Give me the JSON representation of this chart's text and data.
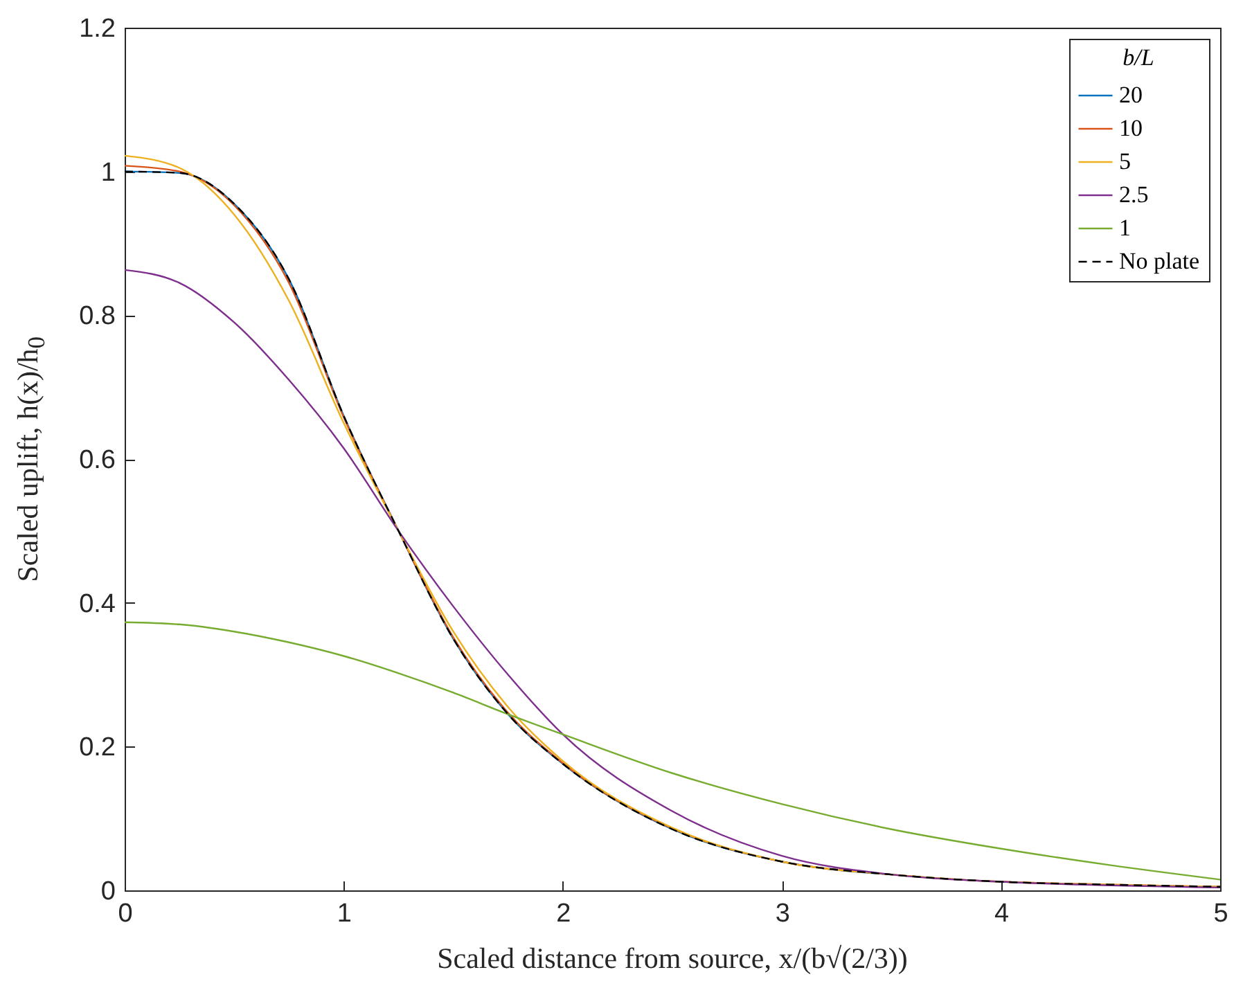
{
  "chart_data": {
    "type": "line",
    "xlabel": "Scaled distance from source, x/(b√(2/3))",
    "ylabel": "Scaled uplift, h(x)/h$_{0}$",
    "legend_title": "b/L",
    "legend": "top right",
    "grid": false,
    "x": [
      0,
      0.25,
      0.5,
      0.75,
      1,
      1.25,
      1.5,
      1.75,
      2,
      2.5,
      3,
      3.5,
      4,
      4.5,
      5
    ],
    "xlim": [
      0,
      5
    ],
    "xticks": [
      0,
      1,
      2,
      3,
      4,
      5
    ],
    "ylim": [
      0,
      1.2
    ],
    "yticks": [
      0,
      0.2,
      0.4,
      0.6,
      0.8,
      1,
      1.2
    ],
    "series": [
      {
        "name": "20",
        "color": "#0072bd",
        "line_style": "solid",
        "values": [
          1.0,
          0.998,
          0.955,
          0.85,
          0.66,
          0.5,
          0.35,
          0.245,
          0.176,
          0.085,
          0.04,
          0.022,
          null,
          null,
          null
        ]
      },
      {
        "name": "10",
        "color": "#d95319",
        "line_style": "solid",
        "values": [
          1.008,
          1.0,
          0.953,
          0.845,
          0.658,
          0.5,
          0.352,
          0.247,
          0.177,
          0.086,
          0.04,
          0.022,
          0.012,
          0.008,
          0.005
        ]
      },
      {
        "name": "5",
        "color": "#edb120",
        "line_style": "solid",
        "values": [
          1.022,
          1.005,
          0.94,
          0.82,
          0.65,
          0.5,
          0.36,
          0.255,
          0.18,
          0.087,
          0.04,
          0.022,
          0.012,
          0.008,
          0.005
        ]
      },
      {
        "name": "2.5",
        "color": "#7e2f8e",
        "line_style": "solid",
        "values": [
          0.863,
          0.845,
          0.79,
          0.71,
          0.615,
          0.5,
          0.395,
          0.3,
          0.217,
          0.11,
          0.048,
          0.022,
          0.012,
          0.007,
          0.004
        ]
      },
      {
        "name": "1",
        "color": "#77ac30",
        "line_style": "solid",
        "values": [
          0.373,
          0.37,
          0.36,
          0.345,
          0.326,
          0.302,
          0.275,
          0.245,
          0.217,
          0.163,
          0.12,
          0.085,
          0.058,
          0.035,
          0.015
        ]
      },
      {
        "name": "No plate",
        "color": "#000000",
        "line_style": "dashed",
        "values": [
          1.0,
          0.998,
          0.955,
          0.85,
          0.66,
          0.5,
          0.35,
          0.245,
          0.176,
          0.085,
          0.04,
          0.022,
          0.012,
          0.008,
          0.005
        ]
      }
    ]
  }
}
